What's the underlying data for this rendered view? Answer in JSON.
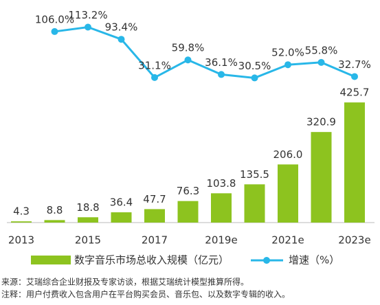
{
  "chart_data": {
    "type": "combo",
    "categories": [
      "2013",
      null,
      "2015",
      null,
      "2017",
      null,
      "2019e",
      null,
      "2021e",
      null,
      "2023e"
    ],
    "series": [
      {
        "name": "数字音乐市场总收入规模（亿元）",
        "type": "bar",
        "color": "#8dc31f",
        "values": [
          4.3,
          8.8,
          18.8,
          36.4,
          47.7,
          76.3,
          103.8,
          135.5,
          206.0,
          320.9,
          425.7
        ],
        "value_labels": [
          "4.3",
          "8.8",
          "18.8",
          "36.4",
          "47.7",
          "76.3",
          "103.8",
          "135.5",
          "206.0",
          "320.9",
          "425.7"
        ]
      },
      {
        "name": "增速（%）",
        "type": "line",
        "axis": "y2",
        "color": "#28b7e8",
        "values": [
          null,
          106.0,
          113.2,
          93.4,
          31.1,
          59.8,
          36.1,
          30.5,
          52.0,
          55.8,
          32.7
        ],
        "value_labels": [
          null,
          "106.0%",
          "113.2%",
          "93.4%",
          "31.1%",
          "59.8%",
          "36.1%",
          "30.5%",
          "52.0%",
          "55.8%",
          "32.7%"
        ]
      }
    ],
    "ylim": [
      0,
      740
    ],
    "y2lim": [
      -205,
      135
    ],
    "annotations": [
      "来源：艾瑞综合企业财报及专家访谈，根据艾瑞统计模型推算所得。",
      "注释：用户付费收入包含用户在平台购买会员、音乐包、以及数字专辑的收入。"
    ]
  }
}
